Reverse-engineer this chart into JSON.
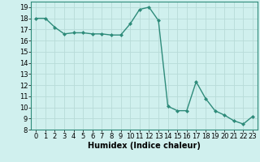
{
  "x": [
    0,
    1,
    2,
    3,
    4,
    5,
    6,
    7,
    8,
    9,
    10,
    11,
    12,
    13,
    14,
    15,
    16,
    17,
    18,
    19,
    20,
    21,
    22,
    23
  ],
  "y": [
    18.0,
    18.0,
    17.2,
    16.6,
    16.7,
    16.7,
    16.6,
    16.6,
    16.5,
    16.5,
    17.5,
    18.8,
    19.0,
    17.8,
    10.1,
    9.7,
    9.7,
    12.3,
    10.8,
    9.7,
    9.3,
    8.8,
    8.5,
    9.2
  ],
  "line_color": "#2e8b7a",
  "marker": "D",
  "marker_size": 2.0,
  "linewidth": 1.0,
  "background_color": "#d0f0ee",
  "grid_color": "#b8dbd8",
  "xlabel": "Humidex (Indice chaleur)",
  "xlabel_fontsize": 7,
  "tick_fontsize": 6,
  "xlim": [
    -0.5,
    23.5
  ],
  "ylim": [
    8,
    19.5
  ],
  "yticks": [
    8,
    9,
    10,
    11,
    12,
    13,
    14,
    15,
    16,
    17,
    18,
    19
  ],
  "xticks": [
    0,
    1,
    2,
    3,
    4,
    5,
    6,
    7,
    8,
    9,
    10,
    11,
    12,
    13,
    14,
    15,
    16,
    17,
    18,
    19,
    20,
    21,
    22,
    23
  ]
}
